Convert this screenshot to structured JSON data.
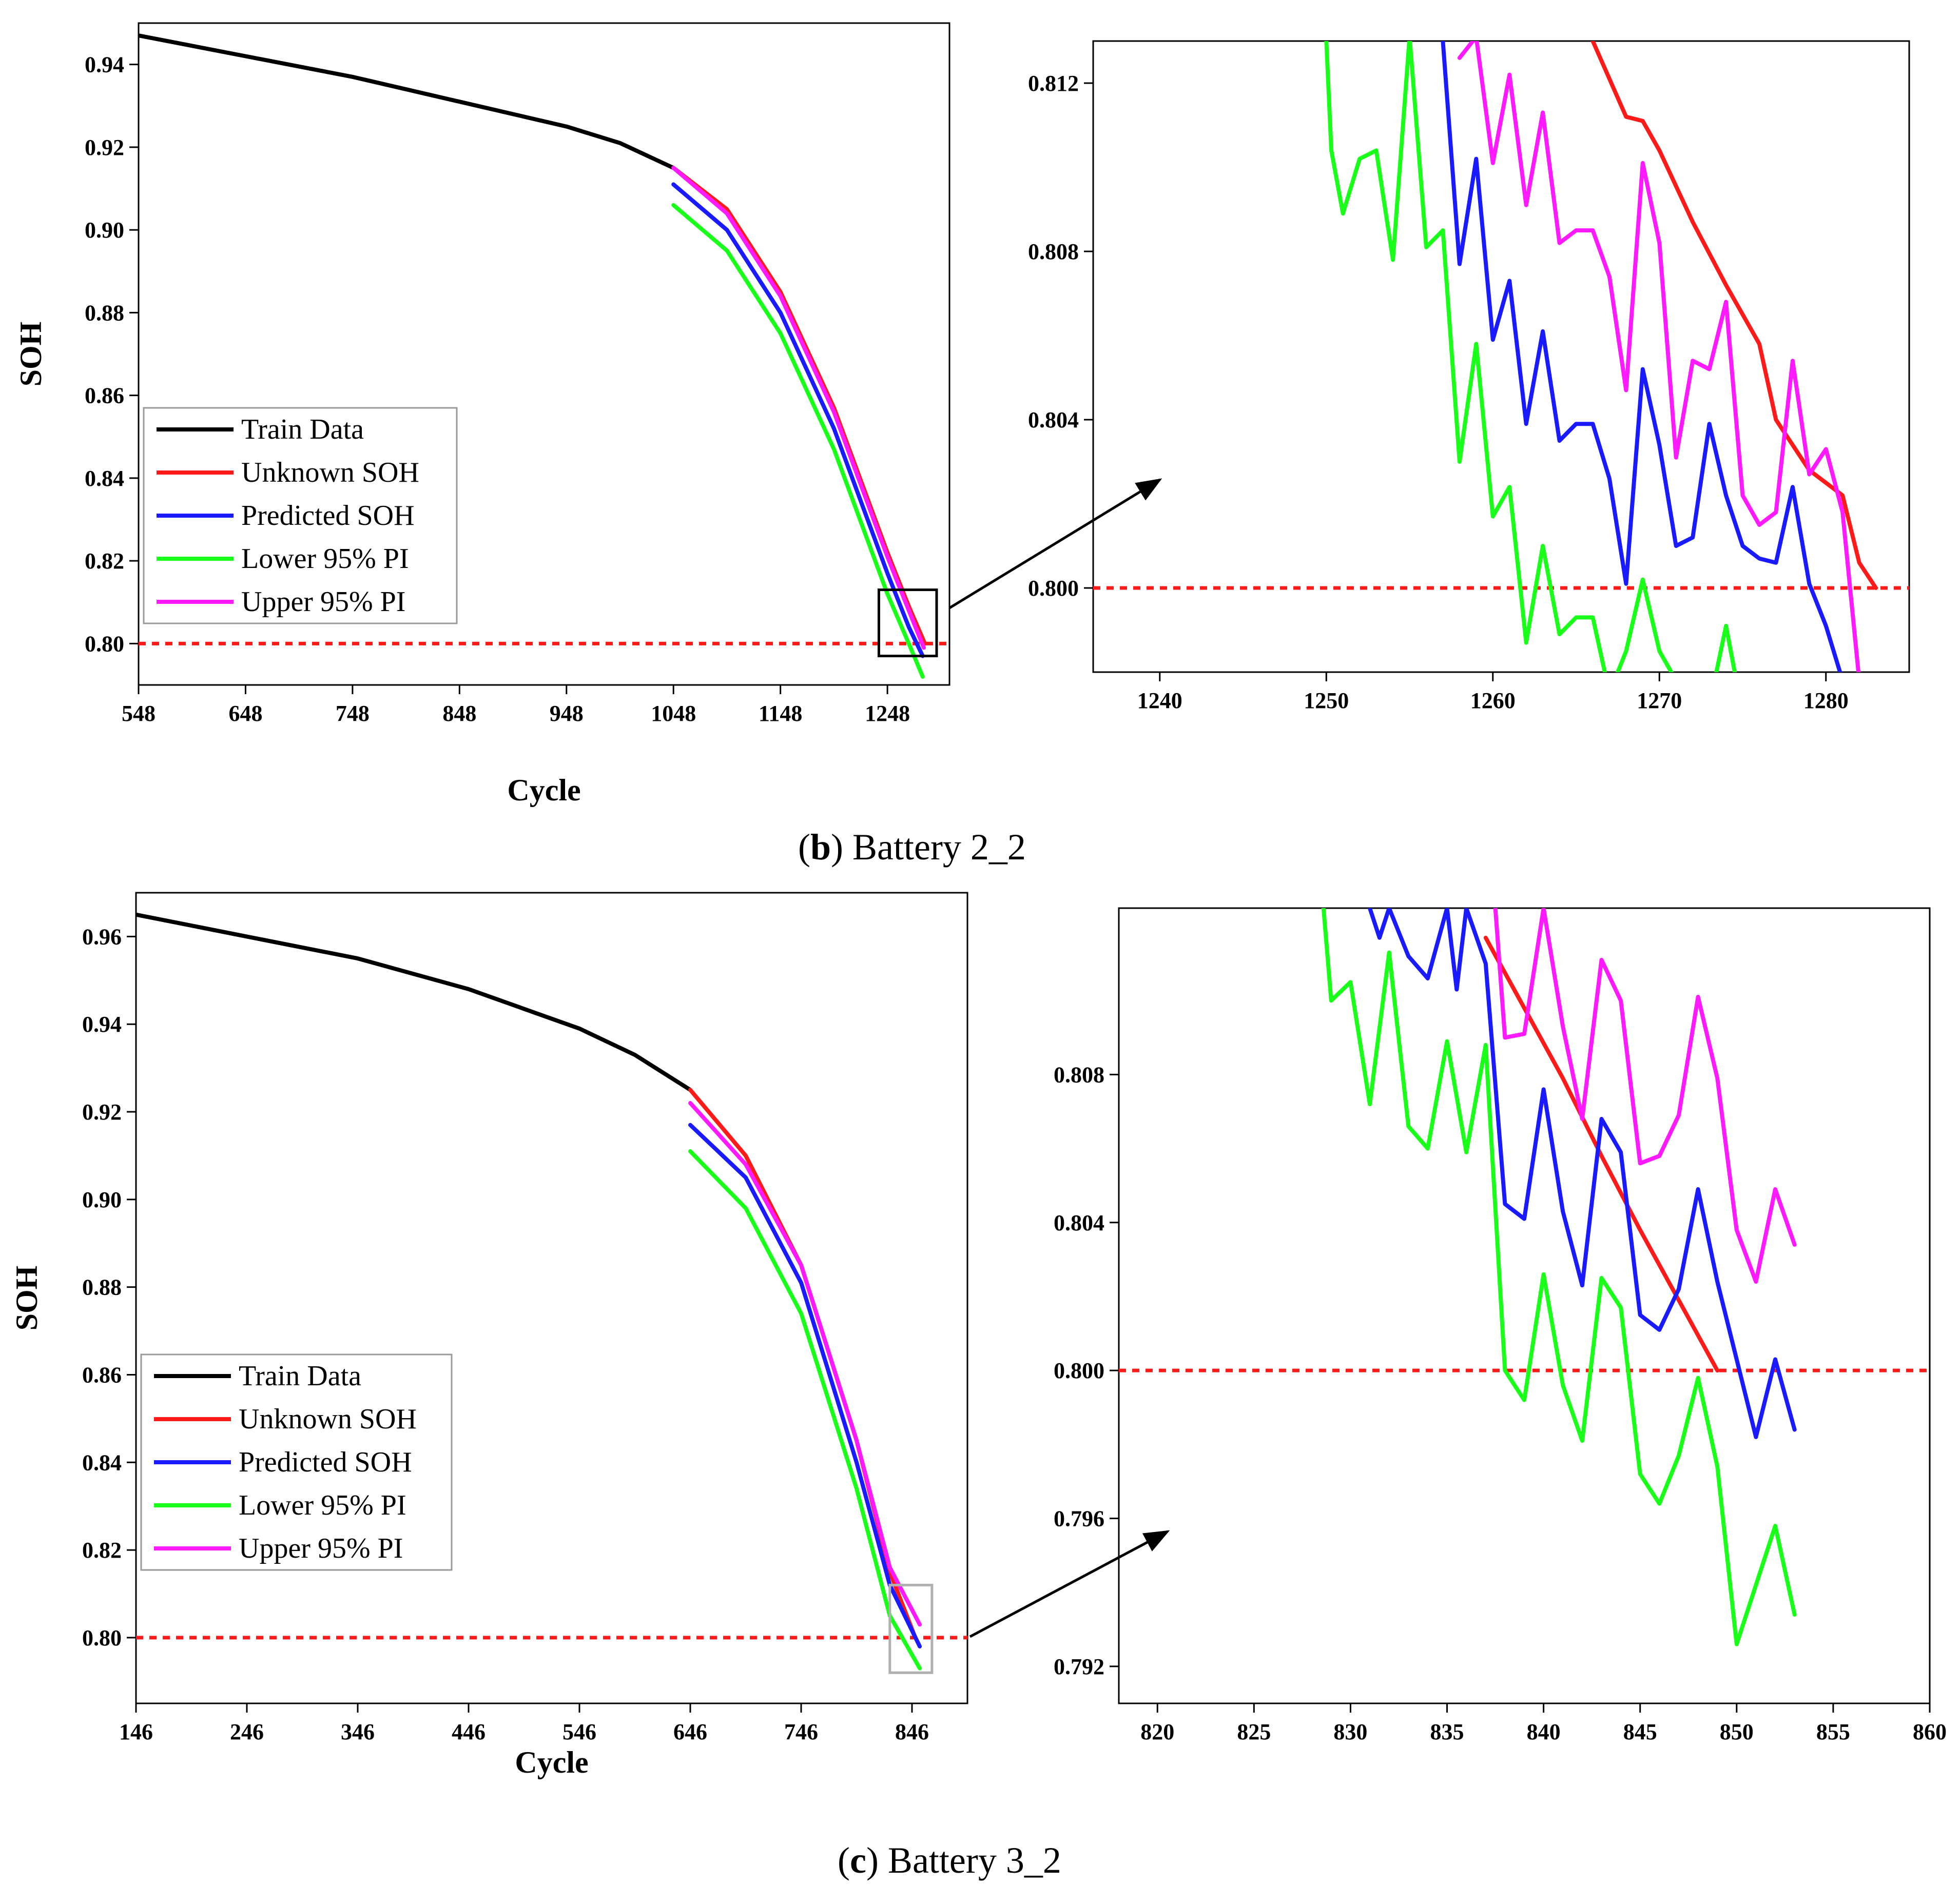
{
  "colors": {
    "train": "#000000",
    "unknown": "#ff1a1a",
    "predicted": "#1a1aff",
    "lower": "#19ff19",
    "upper": "#ff19ff",
    "threshold": "#ff1a1a",
    "axis": "#000000"
  },
  "panels": [
    {
      "caption": {
        "open": "(",
        "letter": "b",
        "rest": ") Battery 2_2"
      },
      "arrow": "from-inset-box-to-zoom-view"
    },
    {
      "caption": {
        "open": "(",
        "letter": "c",
        "rest": ") Battery 3_2"
      },
      "arrow": "from-inset-box-to-zoom-view"
    }
  ],
  "chart_data": [
    {
      "id": "b-main",
      "type": "line",
      "xlabel": "Cycle",
      "ylabel": "SOH",
      "xlim": [
        548,
        1306
      ],
      "ylim": [
        0.79,
        0.95
      ],
      "xticks": [
        548,
        648,
        748,
        848,
        948,
        1048,
        1148,
        1248
      ],
      "xtick_labels": [
        "548",
        "648",
        "748",
        "848",
        "948",
        "1048",
        "1148",
        "1248"
      ],
      "yticks": [
        0.8,
        0.82,
        0.84,
        0.86,
        0.88,
        0.9,
        0.92,
        0.94
      ],
      "ytick_labels": [
        "0.80",
        "0.82",
        "0.84",
        "0.86",
        "0.88",
        "0.90",
        "0.92",
        "0.94"
      ],
      "grid": false,
      "legend": "bottom-left",
      "threshold": 0.8,
      "inset_box": {
        "x": [
          1240,
          1294
        ],
        "y": [
          0.797,
          0.813
        ]
      },
      "series": [
        {
          "name": "Train Data",
          "color_key": "train",
          "x": [
            548,
            648,
            748,
            848,
            948,
            998,
            1048
          ],
          "y": [
            0.947,
            0.942,
            0.937,
            0.931,
            0.925,
            0.921,
            0.915
          ]
        },
        {
          "name": "Unknown SOH",
          "color_key": "unknown",
          "x": [
            1048,
            1098,
            1148,
            1198,
            1248,
            1268,
            1283
          ],
          "y": [
            0.915,
            0.905,
            0.885,
            0.857,
            0.822,
            0.809,
            0.8
          ]
        },
        {
          "name": "Predicted SOH",
          "color_key": "predicted",
          "x": [
            1048,
            1098,
            1148,
            1198,
            1248,
            1268,
            1281
          ],
          "y": [
            0.911,
            0.9,
            0.88,
            0.852,
            0.817,
            0.804,
            0.797
          ]
        },
        {
          "name": "Lower 95% PI",
          "color_key": "lower",
          "x": [
            1048,
            1098,
            1148,
            1198,
            1248,
            1268,
            1281
          ],
          "y": [
            0.906,
            0.895,
            0.875,
            0.847,
            0.812,
            0.8,
            0.792
          ]
        },
        {
          "name": "Upper 95% PI",
          "color_key": "upper",
          "x": [
            1048,
            1098,
            1148,
            1198,
            1248,
            1268,
            1282
          ],
          "y": [
            0.915,
            0.904,
            0.884,
            0.856,
            0.821,
            0.808,
            0.799
          ]
        }
      ]
    },
    {
      "id": "b-zoom",
      "type": "line",
      "xlim": [
        1236,
        1285
      ],
      "ylim": [
        0.798,
        0.813
      ],
      "xticks": [
        1240,
        1250,
        1260,
        1270,
        1280
      ],
      "xtick_labels": [
        "1240",
        "1250",
        "1260",
        "1270",
        "1280"
      ],
      "yticks": [
        0.8,
        0.804,
        0.808,
        0.812
      ],
      "ytick_labels": [
        "0.800",
        "0.804",
        "0.808",
        "0.812"
      ],
      "grid": false,
      "threshold": 0.8,
      "series": [
        {
          "name": "Unknown SOH",
          "color_key": "unknown",
          "x": [
            1266,
            1268,
            1269,
            1270,
            1272,
            1274,
            1276,
            1277,
            1279,
            1281,
            1282,
            1283
          ],
          "y": [
            0.813,
            0.8112,
            0.8111,
            0.8104,
            0.8087,
            0.8072,
            0.8058,
            0.804,
            0.8028,
            0.8022,
            0.8006,
            0.8
          ]
        },
        {
          "name": "Predicted SOH",
          "color_key": "predicted",
          "x": [
            1257,
            1258,
            1259,
            1260,
            1261,
            1262,
            1263,
            1264,
            1265,
            1266,
            1267,
            1268,
            1269,
            1270,
            1271,
            1272,
            1273,
            1274,
            1275,
            1276,
            1277,
            1278,
            1279,
            1280,
            1281
          ],
          "y": [
            0.813,
            0.8077,
            0.8102,
            0.8059,
            0.8073,
            0.8039,
            0.8061,
            0.8035,
            0.8039,
            0.8039,
            0.8026,
            0.8001,
            0.8052,
            0.8034,
            0.801,
            0.8012,
            0.8039,
            0.8022,
            0.801,
            0.8007,
            0.8006,
            0.8024,
            0.8001,
            0.7991,
            0.7978
          ]
        },
        {
          "name": "Lower 95% PI",
          "color_key": "lower",
          "x": [
            1250,
            1250.3,
            1251,
            1252,
            1253,
            1254,
            1255,
            1256,
            1257,
            1258,
            1259,
            1260,
            1261,
            1262,
            1263,
            1264,
            1265,
            1266,
            1267,
            1268,
            1269,
            1270,
            1271,
            1272,
            1273,
            1274,
            1275
          ],
          "y": [
            0.813,
            0.8104,
            0.8089,
            0.8102,
            0.8104,
            0.8078,
            0.8131,
            0.8081,
            0.8085,
            0.803,
            0.8058,
            0.8017,
            0.8024,
            0.7987,
            0.801,
            0.7989,
            0.7993,
            0.7993,
            0.7975,
            0.7985,
            0.8002,
            0.7985,
            0.7978,
            0.7965,
            0.7972,
            0.7991,
            0.797
          ]
        },
        {
          "name": "Upper 95% PI",
          "color_key": "upper",
          "x": [
            1258,
            1259,
            1260,
            1261,
            1262,
            1263,
            1264,
            1265,
            1266,
            1267,
            1268,
            1269,
            1270,
            1271,
            1272,
            1273,
            1274,
            1275,
            1276,
            1277,
            1278,
            1279,
            1280,
            1281,
            1282
          ],
          "y": [
            0.8126,
            0.8131,
            0.8101,
            0.8122,
            0.8091,
            0.8113,
            0.8082,
            0.8085,
            0.8085,
            0.8074,
            0.8047,
            0.8101,
            0.8082,
            0.8031,
            0.8054,
            0.8052,
            0.8068,
            0.8022,
            0.8015,
            0.8018,
            0.8054,
            0.8027,
            0.8033,
            0.8018,
            0.7978
          ]
        }
      ]
    },
    {
      "id": "c-main",
      "type": "line",
      "xlabel": "Cycle",
      "ylabel": "SOH",
      "xlim": [
        146,
        896
      ],
      "ylim": [
        0.785,
        0.97
      ],
      "xticks": [
        146,
        246,
        346,
        446,
        546,
        646,
        746,
        846
      ],
      "xtick_labels": [
        "146",
        "246",
        "346",
        "446",
        "546",
        "646",
        "746",
        "846"
      ],
      "yticks": [
        0.8,
        0.82,
        0.84,
        0.86,
        0.88,
        0.9,
        0.92,
        0.94,
        0.96
      ],
      "ytick_labels": [
        "0.80",
        "0.82",
        "0.84",
        "0.86",
        "0.88",
        "0.90",
        "0.92",
        "0.94",
        "0.96"
      ],
      "grid": false,
      "legend": "bottom-left",
      "threshold": 0.8,
      "inset_box": {
        "x": [
          826,
          864
        ],
        "y": [
          0.792,
          0.812
        ]
      },
      "series": [
        {
          "name": "Train Data",
          "color_key": "train",
          "x": [
            146,
            246,
            346,
            446,
            546,
            596,
            646
          ],
          "y": [
            0.965,
            0.96,
            0.955,
            0.948,
            0.939,
            0.933,
            0.925
          ]
        },
        {
          "name": "Unknown SOH",
          "color_key": "unknown",
          "x": [
            646,
            696,
            746,
            796,
            826,
            849
          ],
          "y": [
            0.925,
            0.91,
            0.885,
            0.845,
            0.815,
            0.8
          ]
        },
        {
          "name": "Predicted SOH",
          "color_key": "predicted",
          "x": [
            646,
            696,
            746,
            796,
            826,
            853
          ],
          "y": [
            0.917,
            0.905,
            0.881,
            0.84,
            0.812,
            0.798
          ]
        },
        {
          "name": "Lower 95% PI",
          "color_key": "lower",
          "x": [
            646,
            696,
            746,
            796,
            826,
            853
          ],
          "y": [
            0.911,
            0.898,
            0.874,
            0.834,
            0.805,
            0.793
          ]
        },
        {
          "name": "Upper 95% PI",
          "color_key": "upper",
          "x": [
            646,
            696,
            746,
            796,
            826,
            853
          ],
          "y": [
            0.922,
            0.908,
            0.885,
            0.845,
            0.816,
            0.803
          ]
        }
      ]
    },
    {
      "id": "c-zoom",
      "type": "line",
      "xlim": [
        818,
        860
      ],
      "ylim": [
        0.791,
        0.8125
      ],
      "xticks": [
        820,
        825,
        830,
        835,
        840,
        845,
        850,
        855,
        860
      ],
      "xtick_labels": [
        "820",
        "825",
        "830",
        "835",
        "840",
        "845",
        "850",
        "855",
        "860"
      ],
      "yticks": [
        0.792,
        0.796,
        0.8,
        0.804,
        0.808
      ],
      "ytick_labels": [
        "0.792",
        "0.796",
        "0.800",
        "0.804",
        "0.808"
      ],
      "grid": false,
      "threshold": 0.8,
      "series": [
        {
          "name": "Unknown SOH",
          "color_key": "unknown",
          "x": [
            837,
            839,
            841,
            843,
            845,
            847,
            849
          ],
          "y": [
            0.8117,
            0.8098,
            0.8079,
            0.8058,
            0.8038,
            0.8019,
            0.8
          ]
        },
        {
          "name": "Predicted SOH",
          "color_key": "predicted",
          "x": [
            831,
            831.5,
            832,
            833,
            834,
            835,
            835.5,
            836,
            837,
            838,
            839,
            840,
            841,
            842,
            843,
            844,
            845,
            846,
            847,
            848,
            849,
            850,
            851,
            852,
            853
          ],
          "y": [
            0.8125,
            0.8117,
            0.8125,
            0.8112,
            0.8106,
            0.8125,
            0.8103,
            0.8125,
            0.811,
            0.8045,
            0.8041,
            0.8076,
            0.8043,
            0.8023,
            0.8068,
            0.8059,
            0.8015,
            0.8011,
            0.8022,
            0.8049,
            0.8024,
            0.8003,
            0.7982,
            0.8003,
            0.7984
          ]
        },
        {
          "name": "Lower 95% PI",
          "color_key": "lower",
          "x": [
            828.6,
            829,
            830,
            831,
            832,
            833,
            834,
            835,
            836,
            837,
            838,
            839,
            840,
            841,
            842,
            843,
            844,
            845,
            846,
            847,
            848,
            849,
            850,
            851,
            852,
            853
          ],
          "y": [
            0.8125,
            0.81,
            0.8105,
            0.8072,
            0.8113,
            0.8066,
            0.806,
            0.8089,
            0.8059,
            0.8088,
            0.8,
            0.7992,
            0.8026,
            0.7996,
            0.7981,
            0.8025,
            0.8017,
            0.7972,
            0.7964,
            0.7977,
            0.7998,
            0.7974,
            0.7926,
            0.7942,
            0.7958,
            0.7934
          ]
        },
        {
          "name": "Upper 95% PI",
          "color_key": "upper",
          "x": [
            837.5,
            838,
            839,
            840,
            841,
            842,
            843,
            844,
            845,
            846,
            847,
            848,
            849,
            850,
            851,
            852,
            853
          ],
          "y": [
            0.8125,
            0.809,
            0.8091,
            0.8125,
            0.8093,
            0.8068,
            0.8111,
            0.81,
            0.8056,
            0.8058,
            0.8069,
            0.8101,
            0.8079,
            0.8038,
            0.8024,
            0.8049,
            0.8034
          ]
        }
      ]
    }
  ]
}
